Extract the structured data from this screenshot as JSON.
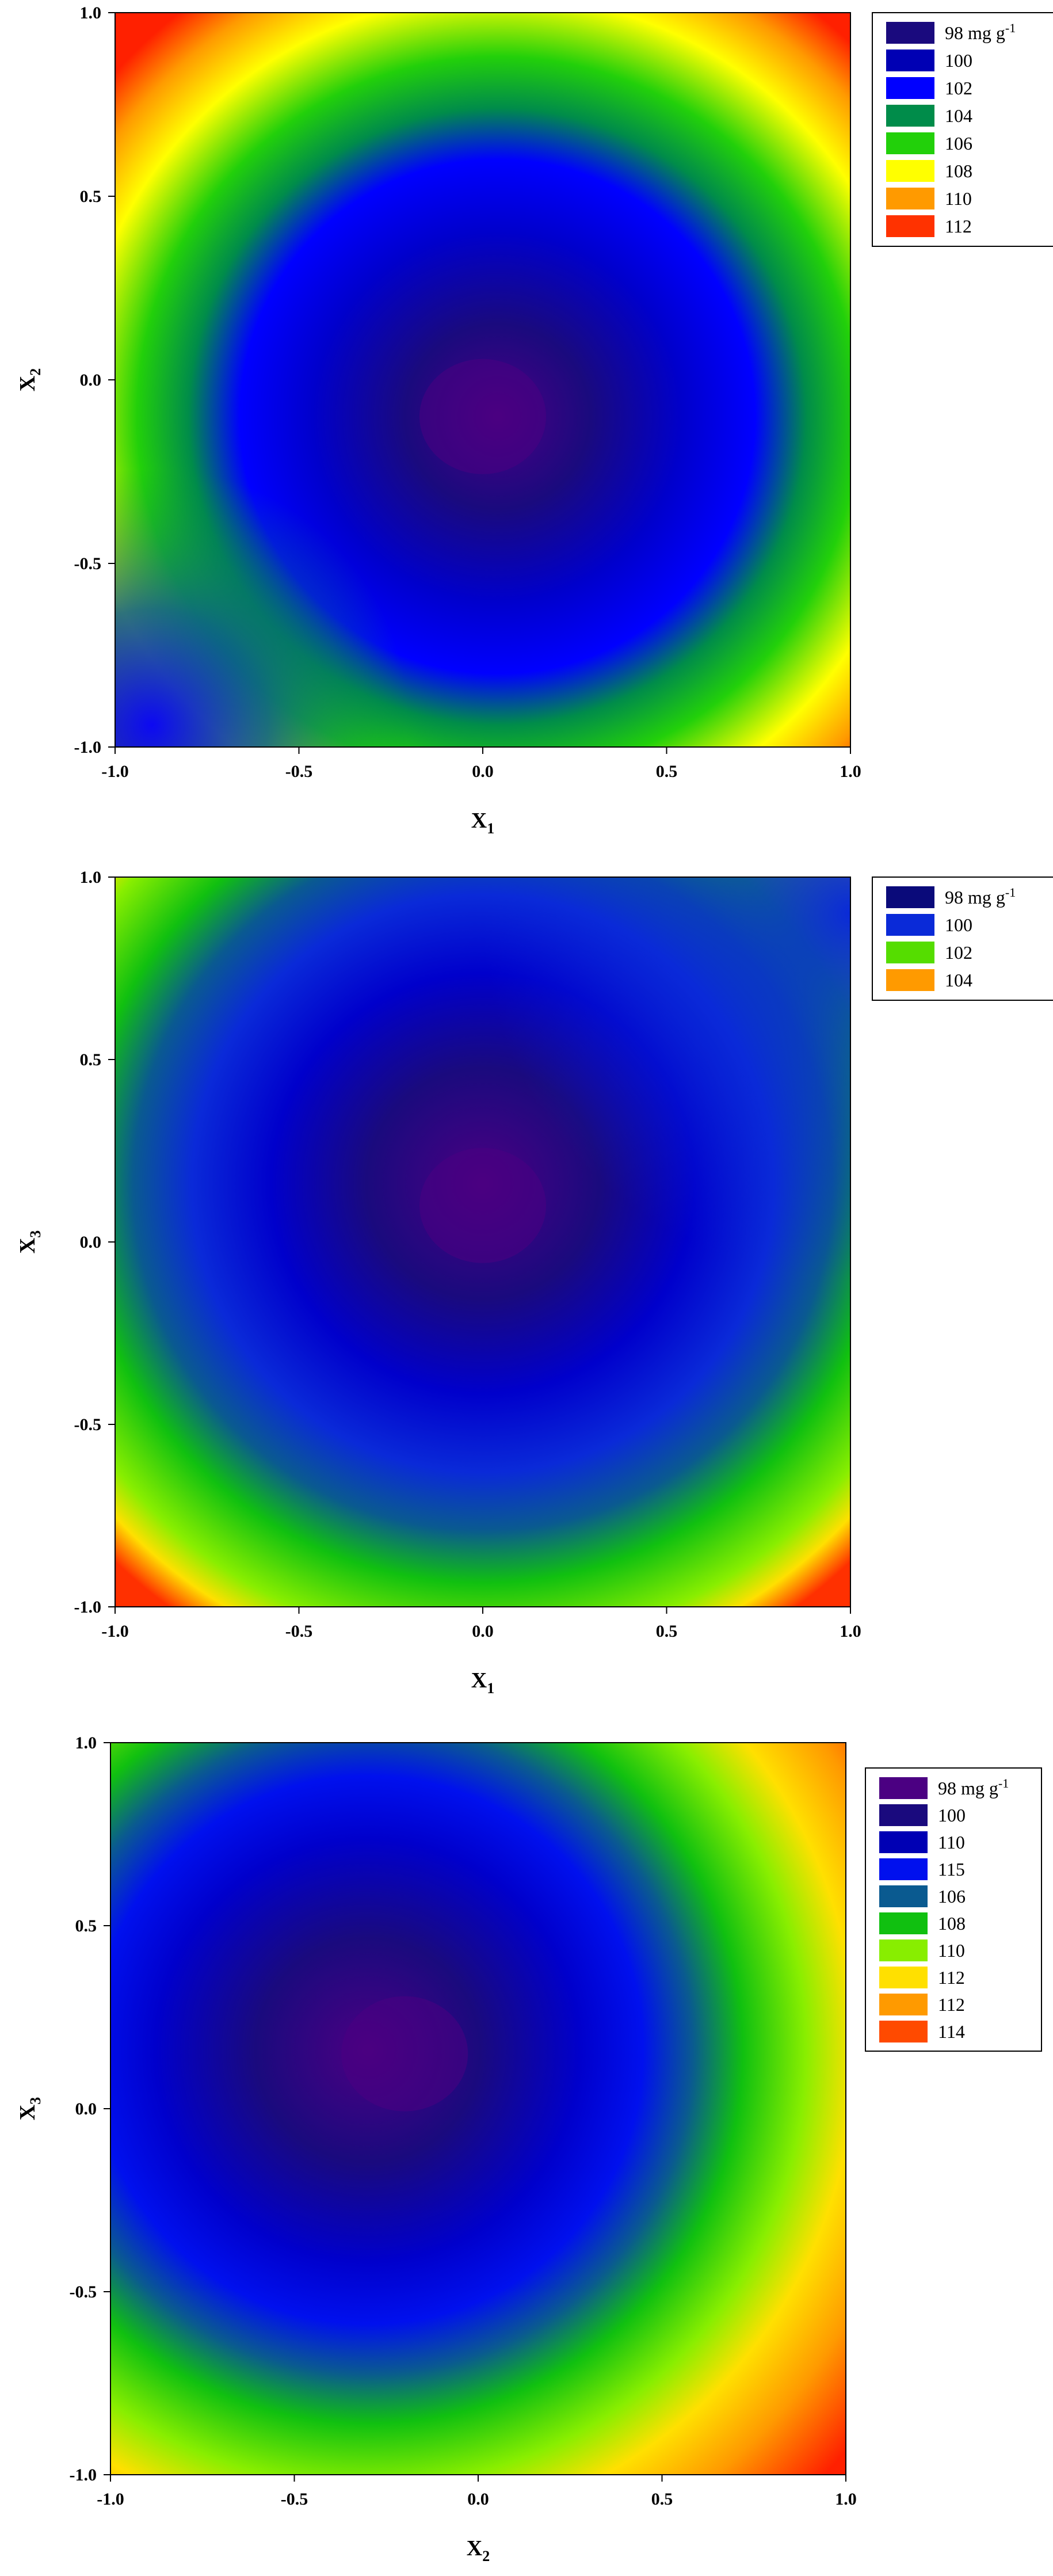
{
  "chart_data": [
    {
      "type": "heatmap",
      "subtype": "contour",
      "xlabel": "X",
      "xlabel_sub": "1",
      "ylabel": "X",
      "ylabel_sub": "2",
      "xlim": [
        -1.0,
        1.0
      ],
      "ylim": [
        -1.0,
        1.0
      ],
      "x_ticks": [
        "-1.0",
        "-0.5",
        "0.0",
        "0.5",
        "1.0"
      ],
      "y_ticks": [
        "-1.0",
        "-0.5",
        "0.0",
        "0.5",
        "1.0"
      ],
      "minimum": {
        "x": 0.0,
        "y": -0.1
      },
      "legend_position": "right",
      "legend": [
        {
          "label": "98 mg g",
          "sup": "-1",
          "color": "#1a0a7e"
        },
        {
          "label": "100",
          "sup": "",
          "color": "#0000b4"
        },
        {
          "label": "102",
          "sup": "",
          "color": "#0000ff"
        },
        {
          "label": "104",
          "sup": "",
          "color": "#008c4a"
        },
        {
          "label": "106",
          "sup": "",
          "color": "#22d00a"
        },
        {
          "label": "108",
          "sup": "",
          "color": "#ffff00"
        },
        {
          "label": "110",
          "sup": "",
          "color": "#ff9a00"
        },
        {
          "label": "112",
          "sup": "",
          "color": "#ff3200"
        }
      ]
    },
    {
      "type": "heatmap",
      "subtype": "contour",
      "xlabel": "X",
      "xlabel_sub": "1",
      "ylabel": "X",
      "ylabel_sub": "3",
      "xlim": [
        -1.0,
        1.0
      ],
      "ylim": [
        -1.0,
        1.0
      ],
      "x_ticks": [
        "-1.0",
        "-0.5",
        "0.0",
        "0.5",
        "1.0"
      ],
      "y_ticks": [
        "-1.0",
        "-0.5",
        "0.0",
        "0.5",
        "1.0"
      ],
      "minimum": {
        "x": 0.0,
        "y": 0.1
      },
      "legend_position": "right",
      "legend": [
        {
          "label": "98 mg g",
          "sup": "-1",
          "color": "#0a0a7a"
        },
        {
          "label": "100",
          "sup": "",
          "color": "#0a2ad8"
        },
        {
          "label": "102",
          "sup": "",
          "color": "#55dd00"
        },
        {
          "label": "104",
          "sup": "",
          "color": "#ff9a00"
        }
      ]
    },
    {
      "type": "heatmap",
      "subtype": "contour",
      "xlabel": "X",
      "xlabel_sub": "2",
      "ylabel": "X",
      "ylabel_sub": "3",
      "xlim": [
        -1.0,
        1.0
      ],
      "ylim": [
        -1.0,
        1.0
      ],
      "x_ticks": [
        "-1.0",
        "-0.5",
        "0.0",
        "0.5",
        "1.0"
      ],
      "y_ticks": [
        "-1.0",
        "-0.5",
        "0.0",
        "0.5",
        "1.0"
      ],
      "minimum": {
        "x": -0.2,
        "y": 0.15
      },
      "legend_position": "right",
      "legend": [
        {
          "label": "98 mg g",
          "sup": "-1",
          "color": "#4b0082"
        },
        {
          "label": "100",
          "sup": "",
          "color": "#1a0a7e"
        },
        {
          "label": "110",
          "sup": "",
          "color": "#0000b4"
        },
        {
          "label": "115",
          "sup": "",
          "color": "#0010ee"
        },
        {
          "label": "106",
          "sup": "",
          "color": "#0a5a90"
        },
        {
          "label": "108",
          "sup": "",
          "color": "#10c010"
        },
        {
          "label": "110",
          "sup": "",
          "color": "#88ee00"
        },
        {
          "label": "112",
          "sup": "",
          "color": "#ffe000"
        },
        {
          "label": "112",
          "sup": "",
          "color": "#ff9a00"
        },
        {
          "label": "114",
          "sup": "",
          "color": "#ff4a00"
        }
      ]
    }
  ]
}
